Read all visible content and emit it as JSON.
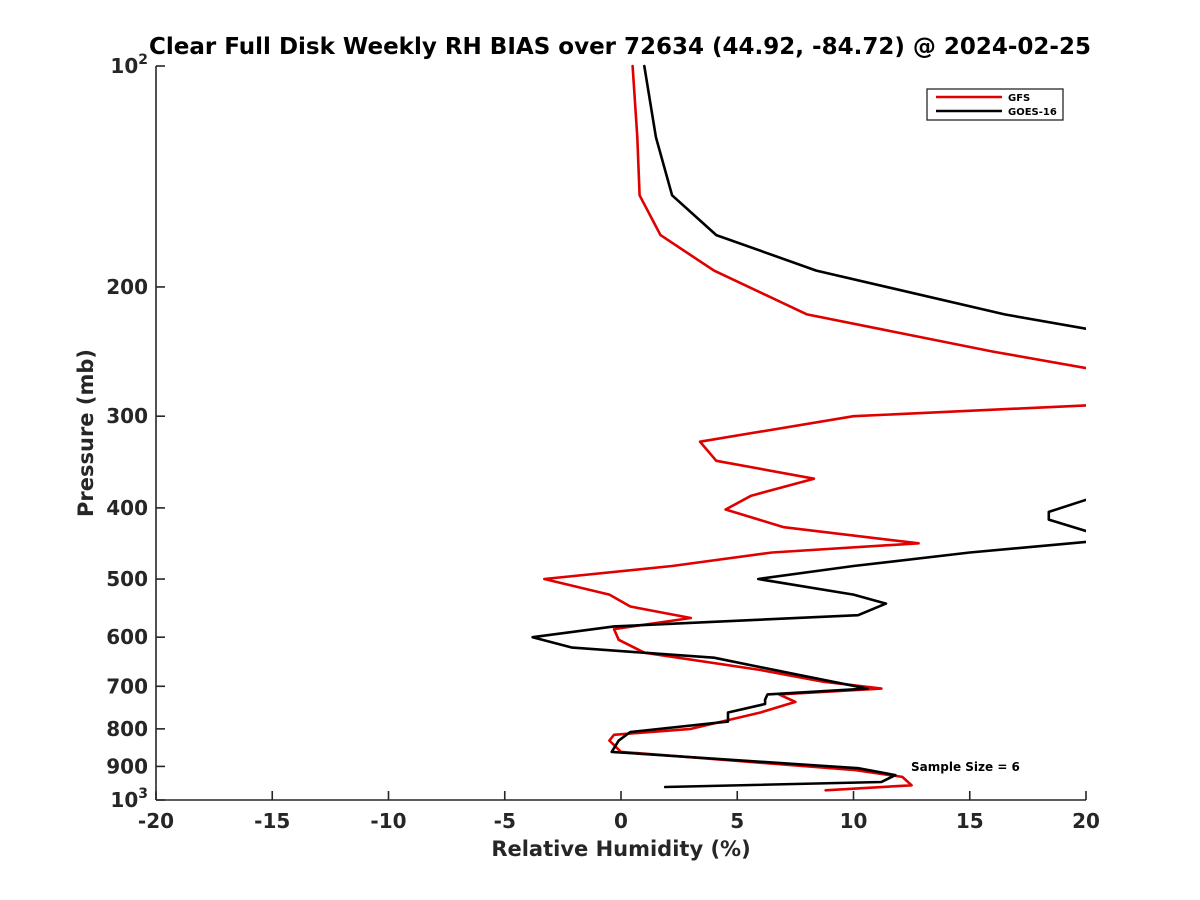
{
  "chart_data": {
    "type": "line",
    "title": "Clear Full Disk Weekly RH BIAS over 72634 (44.92, -84.72) @ 2024-02-25",
    "xlabel": "Relative Humidity (%)",
    "ylabel": "Pressure (mb)",
    "xlim": [
      -20,
      20
    ],
    "ylim": [
      100,
      1000
    ],
    "yscale": "log",
    "y_reversed": true,
    "grid": false,
    "legend_position": "top-right",
    "x_ticks": [
      {
        "value": -20,
        "label": "-20"
      },
      {
        "value": -15,
        "label": "-15"
      },
      {
        "value": -10,
        "label": "-10"
      },
      {
        "value": -5,
        "label": "-5"
      },
      {
        "value": 0,
        "label": "0"
      },
      {
        "value": 5,
        "label": "5"
      },
      {
        "value": 10,
        "label": "10"
      },
      {
        "value": 15,
        "label": "15"
      },
      {
        "value": 20,
        "label": "20"
      }
    ],
    "y_ticks": [
      {
        "value": 100,
        "base": "10",
        "exp": "2"
      },
      {
        "value": 200,
        "base": "200",
        "exp": ""
      },
      {
        "value": 300,
        "base": "300",
        "exp": ""
      },
      {
        "value": 400,
        "base": "400",
        "exp": ""
      },
      {
        "value": 500,
        "base": "500",
        "exp": ""
      },
      {
        "value": 600,
        "base": "600",
        "exp": ""
      },
      {
        "value": 700,
        "base": "700",
        "exp": ""
      },
      {
        "value": 800,
        "base": "800",
        "exp": ""
      },
      {
        "value": 900,
        "base": "900",
        "exp": ""
      },
      {
        "value": 1000,
        "base": "10",
        "exp": "3"
      }
    ],
    "series": [
      {
        "name": "GFS",
        "color": "#e00000",
        "points": [
          [
            0.5,
            100
          ],
          [
            0.7,
            125
          ],
          [
            0.8,
            150
          ],
          [
            1.7,
            170
          ],
          [
            4.0,
            190
          ],
          [
            8.0,
            218
          ],
          [
            16.0,
            245
          ],
          [
            20.0,
            258
          ],
          [
            null,
            null
          ],
          [
            20.0,
            290
          ],
          [
            10.0,
            300
          ],
          [
            3.4,
            325
          ],
          [
            4.1,
            345
          ],
          [
            8.3,
            365
          ],
          [
            5.6,
            385
          ],
          [
            4.5,
            402
          ],
          [
            7.0,
            425
          ],
          [
            12.8,
            447
          ],
          [
            6.5,
            460
          ],
          [
            2.2,
            480
          ],
          [
            -3.3,
            500
          ],
          [
            -0.5,
            525
          ],
          [
            0.4,
            545
          ],
          [
            3.0,
            565
          ],
          [
            -0.3,
            585
          ],
          [
            -0.1,
            605
          ],
          [
            1.0,
            630
          ],
          [
            6.0,
            665
          ],
          [
            8.7,
            690
          ],
          [
            11.2,
            705
          ],
          [
            6.8,
            718
          ],
          [
            7.5,
            735
          ],
          [
            6.0,
            760
          ],
          [
            3.0,
            800
          ],
          [
            -0.3,
            815
          ],
          [
            -0.5,
            830
          ],
          [
            0.0,
            860
          ],
          [
            10.0,
            910
          ],
          [
            12.1,
            930
          ],
          [
            12.5,
            955
          ],
          [
            8.8,
            970
          ]
        ]
      },
      {
        "name": "GOES-16",
        "color": "#000000",
        "points": [
          [
            1.0,
            100
          ],
          [
            1.5,
            125
          ],
          [
            2.2,
            150
          ],
          [
            4.1,
            170
          ],
          [
            8.4,
            190
          ],
          [
            16.5,
            218
          ],
          [
            20.0,
            228
          ],
          [
            null,
            null
          ],
          [
            20.0,
            390
          ],
          [
            18.4,
            405
          ],
          [
            18.4,
            415
          ],
          [
            20.0,
            430
          ],
          [
            null,
            null
          ],
          [
            20.0,
            445
          ],
          [
            15.0,
            460
          ],
          [
            10.0,
            480
          ],
          [
            5.9,
            500
          ],
          [
            10.0,
            525
          ],
          [
            11.4,
            540
          ],
          [
            10.2,
            560
          ],
          [
            -0.3,
            580
          ],
          [
            -3.8,
            600
          ],
          [
            -2.1,
            620
          ],
          [
            4.0,
            640
          ],
          [
            7.6,
            675
          ],
          [
            10.6,
            705
          ],
          [
            6.3,
            718
          ],
          [
            6.2,
            730
          ],
          [
            6.2,
            740
          ],
          [
            4.6,
            760
          ],
          [
            4.6,
            782
          ],
          [
            0.4,
            808
          ],
          [
            -0.1,
            830
          ],
          [
            -0.4,
            860
          ],
          [
            10.2,
            905
          ],
          [
            11.8,
            925
          ],
          [
            11.2,
            945
          ],
          [
            1.9,
            960
          ]
        ]
      }
    ],
    "annotation": "Sample Size = 6"
  }
}
